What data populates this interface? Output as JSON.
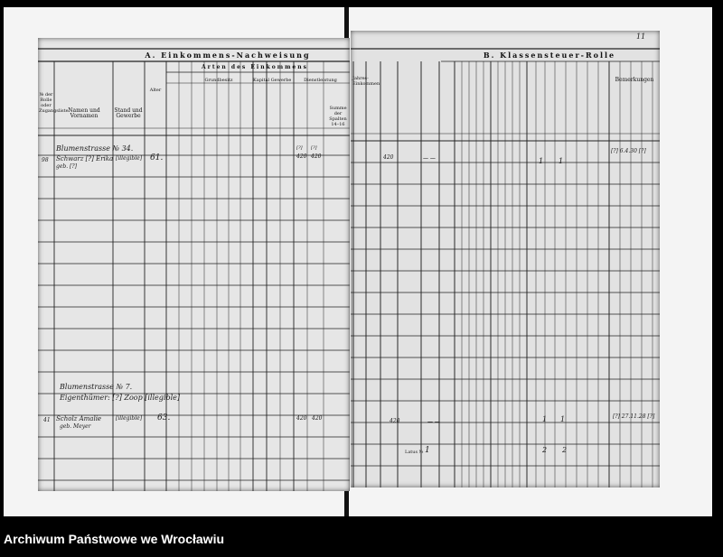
{
  "left_page": {
    "title": "A. Einkommens-Nachweisung",
    "subtitle": "Arten des Einkommens",
    "groups": [
      "Grundbesitz",
      "Kapital",
      "Gewerbe",
      "Dienstleistung"
    ],
    "headers": {
      "number": "№ der Rolle oder Zugangsliste",
      "names": "Namen und Vornamen",
      "status": "Stand und Gewerbe",
      "age": "Alter",
      "sum": "Summe der Spalten 14–16"
    },
    "entries": [
      {
        "address": "Blumenstrasse № 34.",
        "row_no": "98",
        "name": "Schwarz [?] Erika",
        "name_line2": "geb. [?]",
        "occupation": "[illegible]",
        "age": "61.",
        "col15": "[?]",
        "col15_value": "420",
        "col16": "[?]",
        "col16_value": "420"
      },
      {
        "address": "Blumenstrasse № 7.",
        "owner_line": "Eigenthümer: [?] Zoop [illegible]",
        "row_no": "41",
        "name": "Scholz Amalie",
        "name_line2": "geb. Meyer",
        "occupation": "[illegible]",
        "age": "63.",
        "col15_value": "420",
        "col16_value": "420"
      }
    ]
  },
  "right_page": {
    "page_number": "11",
    "title": "B. Klassensteuer-Rolle",
    "headers": {
      "income_total": "Jahres-Einkommen",
      "remarks": "Bemerkungen"
    },
    "entries": [
      {
        "income": "420",
        "dashes": "— —",
        "mark1": "1",
        "mark2": "1",
        "remark": "[?] 6.4.30 [?]"
      },
      {
        "income": "420",
        "dashes": "— —",
        "mark1": "1",
        "mark2": "1",
        "remark": "[?] 27.11.28 [?]"
      }
    ],
    "total_label": "Latus №",
    "total_value": "1",
    "total_mark1": "2",
    "total_mark2": "2"
  },
  "footer": {
    "archive_name": "Archiwum Państwowe we Wrocławiu"
  }
}
